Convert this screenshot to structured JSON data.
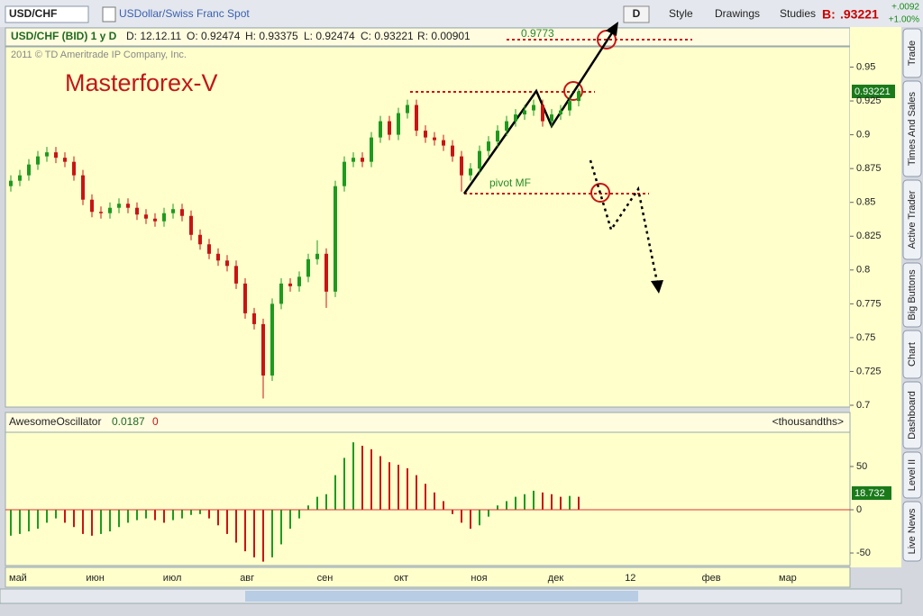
{
  "ui": {
    "symbol": "USD/CHF",
    "description": "USDollar/Swiss Franc Spot",
    "period_button": "D",
    "style": "Style",
    "drawings": "Drawings",
    "studies": "Studies",
    "bid_label": "B:",
    "bid": ".93221",
    "change": "+.0092",
    "change_pct": "+1.00%",
    "info": {
      "instrument": "USD/CHF (BID) 1 y D",
      "date": "D: 12.12.11",
      "open": "O: 0.92474",
      "high": "H: 0.93375",
      "low": "L: 0.92474",
      "close": "C: 0.93221",
      "range": "R: 0.00901"
    },
    "tabs": [
      "Trade",
      "Times And Sales",
      "Active Trader",
      "Big Buttons",
      "Chart",
      "Dashboard",
      "Level II",
      "Live News"
    ]
  },
  "chart_data": [
    {
      "type": "candlestick",
      "watermark": "2011 © TD Ameritrade IP Company, Inc.",
      "title": "Masterforex-V",
      "annotations": {
        "target": "0.9773",
        "pivot": "pivot MF",
        "last_price": "0.93221"
      },
      "up_color": "#1f9a1f",
      "down_color": "#c81414",
      "ylim": [
        0.7,
        0.965
      ],
      "yticks": [
        0.7,
        0.725,
        0.75,
        0.775,
        0.8,
        0.825,
        0.85,
        0.875,
        0.9,
        0.925,
        0.95
      ],
      "categories": [
        "май",
        "июн",
        "июл",
        "авг",
        "сен",
        "окт",
        "ноя",
        "дек",
        "12",
        "фев",
        "мар"
      ],
      "candles": [
        [
          0.862,
          0.87,
          0.858,
          0.866
        ],
        [
          0.866,
          0.874,
          0.862,
          0.87
        ],
        [
          0.87,
          0.882,
          0.866,
          0.878
        ],
        [
          0.878,
          0.888,
          0.874,
          0.884
        ],
        [
          0.884,
          0.891,
          0.88,
          0.887
        ],
        [
          0.887,
          0.891,
          0.879,
          0.883
        ],
        [
          0.883,
          0.887,
          0.876,
          0.88
        ],
        [
          0.88,
          0.884,
          0.866,
          0.87
        ],
        [
          0.87,
          0.874,
          0.848,
          0.852
        ],
        [
          0.852,
          0.856,
          0.839,
          0.843
        ],
        [
          0.843,
          0.847,
          0.838,
          0.842
        ],
        [
          0.842,
          0.85,
          0.838,
          0.846
        ],
        [
          0.846,
          0.853,
          0.842,
          0.849
        ],
        [
          0.849,
          0.853,
          0.842,
          0.846
        ],
        [
          0.846,
          0.85,
          0.837,
          0.841
        ],
        [
          0.841,
          0.845,
          0.834,
          0.838
        ],
        [
          0.838,
          0.842,
          0.832,
          0.836
        ],
        [
          0.836,
          0.846,
          0.832,
          0.842
        ],
        [
          0.842,
          0.849,
          0.838,
          0.845
        ],
        [
          0.845,
          0.849,
          0.836,
          0.84
        ],
        [
          0.84,
          0.844,
          0.822,
          0.826
        ],
        [
          0.826,
          0.83,
          0.815,
          0.819
        ],
        [
          0.819,
          0.823,
          0.808,
          0.812
        ],
        [
          0.812,
          0.816,
          0.803,
          0.807
        ],
        [
          0.807,
          0.811,
          0.799,
          0.803
        ],
        [
          0.803,
          0.807,
          0.786,
          0.79
        ],
        [
          0.79,
          0.794,
          0.764,
          0.768
        ],
        [
          0.768,
          0.772,
          0.756,
          0.76
        ],
        [
          0.76,
          0.764,
          0.705,
          0.722
        ],
        [
          0.722,
          0.779,
          0.718,
          0.775
        ],
        [
          0.775,
          0.794,
          0.771,
          0.79
        ],
        [
          0.79,
          0.794,
          0.784,
          0.788
        ],
        [
          0.788,
          0.799,
          0.784,
          0.795
        ],
        [
          0.795,
          0.812,
          0.791,
          0.808
        ],
        [
          0.808,
          0.822,
          0.804,
          0.812
        ],
        [
          0.812,
          0.816,
          0.772,
          0.784
        ],
        [
          0.784,
          0.866,
          0.78,
          0.862
        ],
        [
          0.862,
          0.884,
          0.858,
          0.88
        ],
        [
          0.88,
          0.887,
          0.876,
          0.883
        ],
        [
          0.883,
          0.887,
          0.876,
          0.88
        ],
        [
          0.88,
          0.902,
          0.876,
          0.898
        ],
        [
          0.898,
          0.914,
          0.894,
          0.91
        ],
        [
          0.91,
          0.914,
          0.896,
          0.9
        ],
        [
          0.9,
          0.92,
          0.896,
          0.916
        ],
        [
          0.916,
          0.926,
          0.912,
          0.922
        ],
        [
          0.922,
          0.926,
          0.899,
          0.903
        ],
        [
          0.903,
          0.907,
          0.894,
          0.898
        ],
        [
          0.898,
          0.902,
          0.892,
          0.896
        ],
        [
          0.896,
          0.9,
          0.888,
          0.892
        ],
        [
          0.892,
          0.896,
          0.88,
          0.884
        ],
        [
          0.884,
          0.888,
          0.858,
          0.87
        ],
        [
          0.87,
          0.879,
          0.866,
          0.875
        ],
        [
          0.875,
          0.892,
          0.871,
          0.888
        ],
        [
          0.888,
          0.899,
          0.884,
          0.895
        ],
        [
          0.895,
          0.907,
          0.891,
          0.903
        ],
        [
          0.903,
          0.914,
          0.899,
          0.91
        ],
        [
          0.91,
          0.919,
          0.906,
          0.915
        ],
        [
          0.915,
          0.922,
          0.911,
          0.918
        ],
        [
          0.918,
          0.926,
          0.914,
          0.922
        ],
        [
          0.922,
          0.926,
          0.906,
          0.91
        ],
        [
          0.91,
          0.919,
          0.906,
          0.915
        ],
        [
          0.915,
          0.922,
          0.911,
          0.918
        ],
        [
          0.918,
          0.929,
          0.914,
          0.925
        ],
        [
          0.925,
          0.934,
          0.921,
          0.932
        ]
      ]
    },
    {
      "type": "histogram",
      "name": "AwesomeOscillator",
      "current": "0.0187",
      "zero_label": "0",
      "units": "<thousandths>",
      "value_box": "18.732",
      "up_color": "#1f9a1f",
      "down_color": "#c81414",
      "ylim": [
        -63.5,
        87.5
      ],
      "yticks": [
        -50,
        0,
        50
      ],
      "values": [
        -30,
        -28,
        -25,
        -22,
        -15,
        -10,
        -15,
        -20,
        -28,
        -30,
        -28,
        -25,
        -20,
        -15,
        -12,
        -10,
        -12,
        -15,
        -12,
        -10,
        -6,
        -5,
        -10,
        -18,
        -28,
        -38,
        -48,
        -55,
        -60,
        -55,
        -40,
        -22,
        -10,
        5,
        15,
        18,
        40,
        60,
        78,
        74,
        70,
        62,
        55,
        52,
        48,
        40,
        30,
        20,
        10,
        -5,
        -15,
        -22,
        -18,
        -8,
        5,
        10,
        15,
        18,
        22,
        20,
        18,
        15,
        16,
        15
      ]
    }
  ]
}
